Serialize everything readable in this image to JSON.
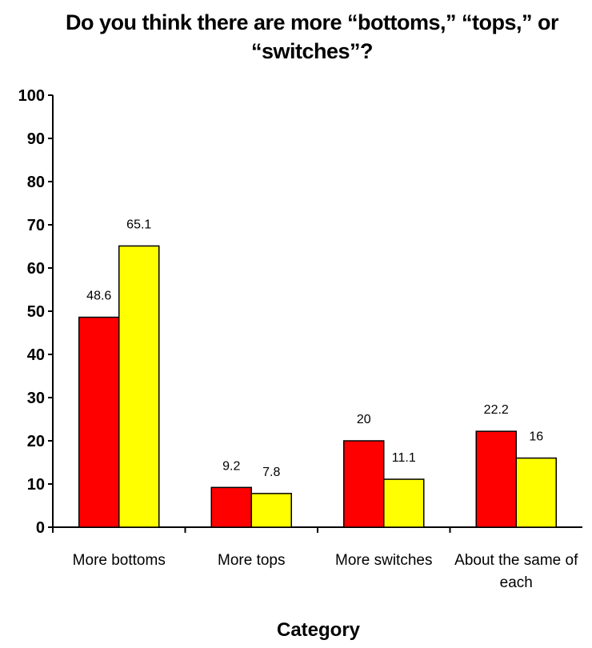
{
  "chart_data": {
    "type": "bar",
    "title_lines": [
      "Do you think there are more “bottoms,” “tops,” or",
      "“switches”?"
    ],
    "xlabel": "Category",
    "ylabel": "",
    "ylim": [
      0,
      100
    ],
    "yticks": [
      "0",
      "10",
      "20",
      "30",
      "40",
      "50",
      "60",
      "70",
      "80",
      "90",
      "100"
    ],
    "categories": [
      [
        "More bottoms"
      ],
      [
        "More tops"
      ],
      [
        "More switches"
      ],
      [
        "About the same of",
        "each"
      ]
    ],
    "series": [
      {
        "values": [
          48.6,
          9.2,
          20,
          22.2
        ],
        "labels": [
          "48.6",
          "9.2",
          "20",
          "22.2"
        ],
        "color": "#ff0000"
      },
      {
        "values": [
          65.1,
          7.8,
          11.1,
          16
        ],
        "labels": [
          "65.1",
          "7.8",
          "11.1",
          "16"
        ],
        "color": "#ffff00"
      }
    ],
    "grid": false,
    "legend": "none"
  }
}
